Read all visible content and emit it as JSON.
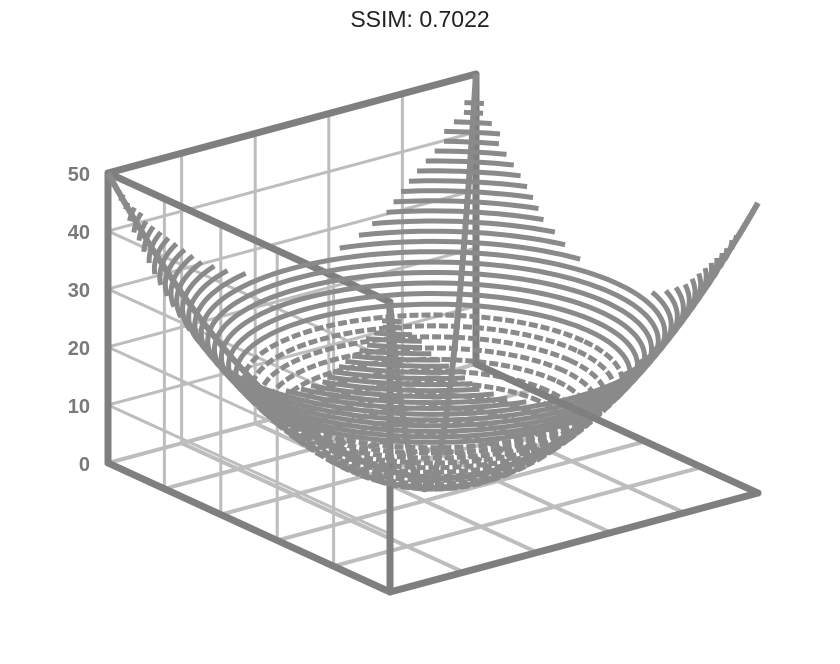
{
  "header": {
    "title": "SSIM: 0.7022"
  },
  "chart_data": {
    "type": "surface",
    "title": "SSIM: 0.7022",
    "surface": "z = x^2 + y^2",
    "x_range": [
      -5,
      5
    ],
    "y_range": [
      -5,
      5
    ],
    "zlim": [
      0,
      50
    ],
    "z_ticks": [
      "0",
      "10",
      "20",
      "30",
      "40",
      "50"
    ],
    "grid": true,
    "colors": {
      "surface": "#8a8a8a",
      "frame": "#7f7f7f",
      "grid": "#bdbdbd",
      "tick": "#7a7a7a"
    }
  }
}
